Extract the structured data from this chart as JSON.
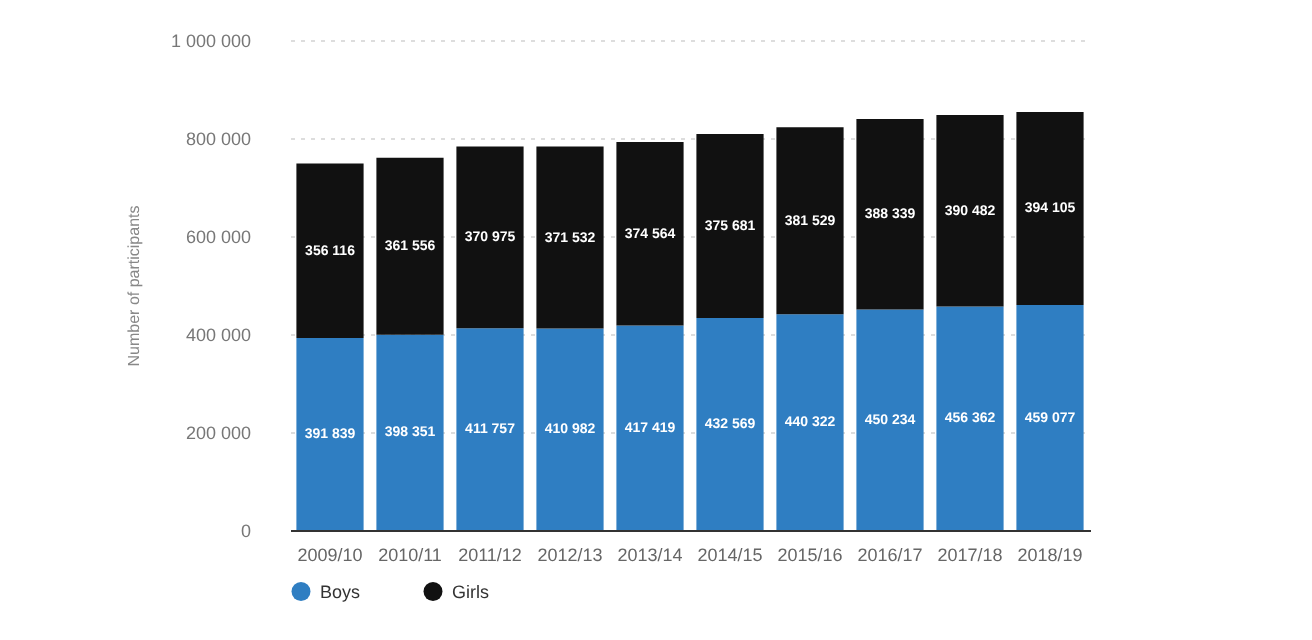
{
  "chart_data": {
    "type": "bar",
    "stacked": true,
    "ylabel": "Number of participants",
    "categories": [
      "2009/10",
      "2010/11",
      "2011/12",
      "2012/13",
      "2013/14",
      "2014/15",
      "2015/16",
      "2016/17",
      "2017/18",
      "2018/19"
    ],
    "series": [
      {
        "name": "Boys",
        "color": "#2f7ec2",
        "values": [
          391839,
          398351,
          411757,
          410982,
          417419,
          432569,
          440322,
          450234,
          456362,
          459077
        ],
        "value_labels": [
          "391 839",
          "398 351",
          "411 757",
          "410 982",
          "417 419",
          "432 569",
          "440 322",
          "450 234",
          "456 362",
          "459 077"
        ]
      },
      {
        "name": "Girls",
        "color": "#111111",
        "values": [
          356116,
          361556,
          370975,
          371532,
          374564,
          375681,
          381529,
          388339,
          390482,
          394105
        ],
        "value_labels": [
          "356 116",
          "361 556",
          "370 975",
          "371 532",
          "374 564",
          "375 681",
          "381 529",
          "388 339",
          "390 482",
          "394 105"
        ]
      }
    ],
    "ylim": [
      0,
      1000000
    ],
    "yticks": [
      0,
      {
        "value": 200000,
        "label": "200 000"
      },
      {
        "value": 400000,
        "label": "400 000"
      },
      {
        "value": 600000,
        "label": "600 000"
      },
      {
        "value": 800000,
        "label": "800 000"
      },
      {
        "value": 1000000,
        "label": "1 000 000"
      }
    ],
    "grid": "y",
    "legend": "bottom"
  }
}
